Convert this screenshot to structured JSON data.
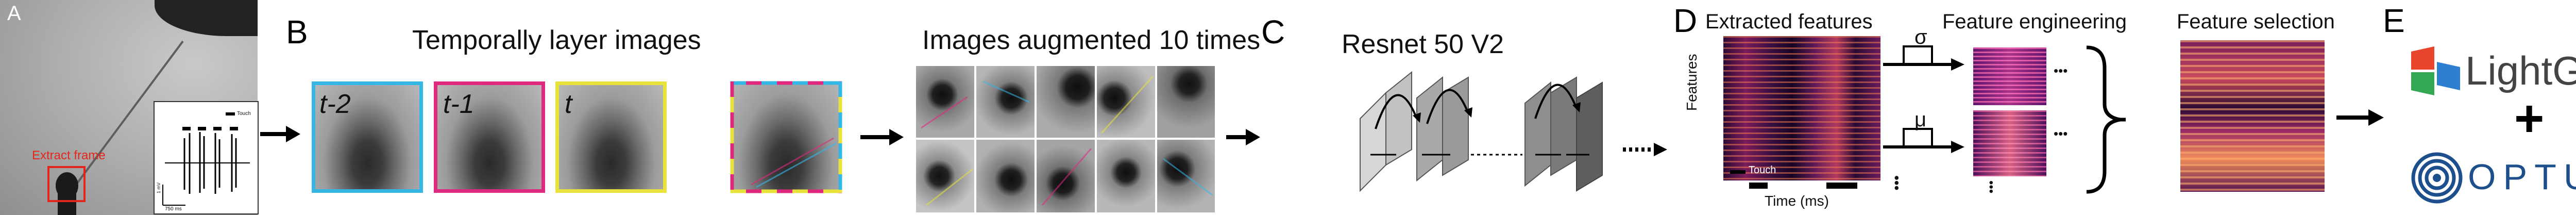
{
  "panels": {
    "a": {
      "letter": "A",
      "extract_label": "Extract frame",
      "inset": {
        "touch_legend": "Touch",
        "scale_y": "1 mV",
        "scale_x": "750 ms"
      }
    },
    "b": {
      "letter": "B",
      "title": "Temporally layer images",
      "frames": [
        "t-2",
        "t-1",
        "t"
      ],
      "frame_colors": [
        "#35b7e6",
        "#e0287f",
        "#e8e23a"
      ],
      "augment_title": "Images augmented 10 times"
    },
    "c": {
      "letter": "C",
      "title": "Resnet 50 V2"
    },
    "d": {
      "letter": "D",
      "extracted_title": "Extracted features",
      "y_label": "Features",
      "x_label": "Time (ms)",
      "touch_legend": "Touch",
      "engineering_title": "Feature engineering",
      "sigma": "σ",
      "mu": "μ",
      "ellipsis": "•••",
      "selection_title": "Feature selection"
    },
    "e": {
      "letter": "E",
      "lightgbm": "LightGBM",
      "plus": "+",
      "optuna": "OPTUNA",
      "lightgbm_colors": [
        "#e8452c",
        "#35a853",
        "#2f7fd0"
      ],
      "optuna_color": "#1d4f8c"
    }
  }
}
